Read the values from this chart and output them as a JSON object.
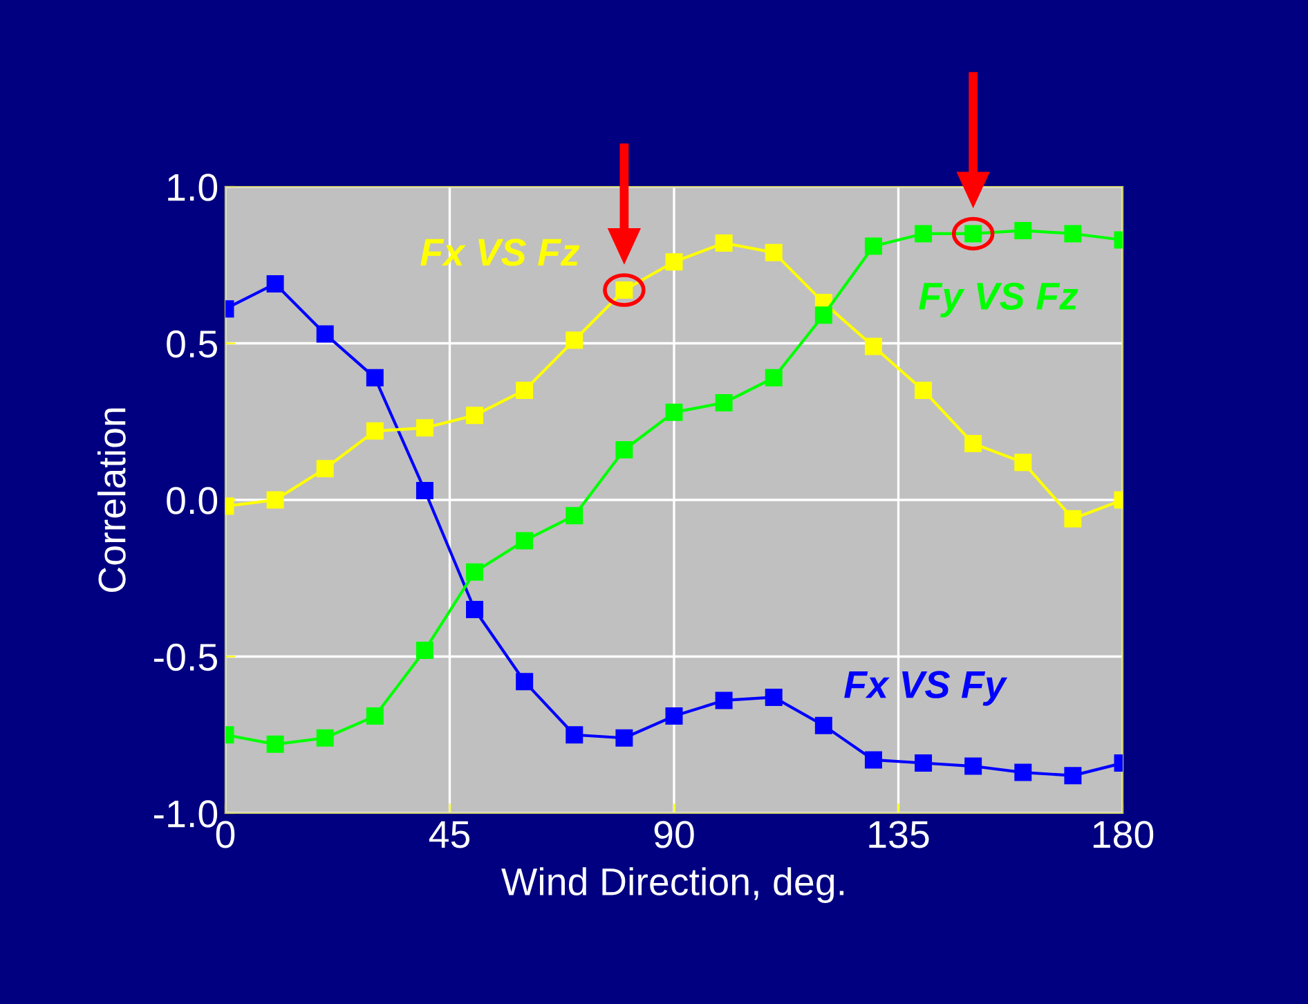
{
  "chart_data": {
    "type": "line",
    "xlabel": "Wind Direction, deg.",
    "ylabel": "Correlation",
    "x": [
      0,
      10,
      20,
      30,
      40,
      50,
      60,
      70,
      80,
      90,
      100,
      110,
      120,
      130,
      140,
      150,
      160,
      170,
      180
    ],
    "series": [
      {
        "name": "Fx VS Fy",
        "color": "#0000ff",
        "values": [
          0.61,
          0.69,
          0.53,
          0.39,
          0.03,
          -0.35,
          -0.58,
          -0.75,
          -0.76,
          -0.69,
          -0.64,
          -0.63,
          -0.72,
          -0.83,
          -0.84,
          -0.85,
          -0.87,
          -0.88,
          -0.84
        ]
      },
      {
        "name": "Fx VS Fz",
        "color": "#ffff00",
        "values": [
          -0.02,
          0.0,
          0.1,
          0.22,
          0.23,
          0.27,
          0.35,
          0.51,
          0.67,
          0.76,
          0.82,
          0.79,
          0.63,
          0.49,
          0.35,
          0.18,
          0.12,
          -0.06,
          0.0
        ]
      },
      {
        "name": "Fy VS Fz",
        "color": "#00ff00",
        "values": [
          -0.75,
          -0.78,
          -0.76,
          -0.69,
          -0.48,
          -0.23,
          -0.13,
          -0.05,
          0.16,
          0.28,
          0.31,
          0.39,
          0.59,
          0.81,
          0.85,
          0.85,
          0.86,
          0.85,
          0.83
        ]
      }
    ],
    "xlim": [
      0,
      180
    ],
    "xticks": [
      0,
      45,
      90,
      135,
      180
    ],
    "ylim": [
      -1.0,
      1.0
    ],
    "yticks": [
      {
        "value": -1.0,
        "label": "-1.0"
      },
      {
        "value": -0.5,
        "label": "-0.5"
      },
      {
        "value": 0.0,
        "label": "0.0"
      },
      {
        "value": 0.5,
        "label": "0.5"
      },
      {
        "value": 1.0,
        "label": "1.0"
      }
    ],
    "grid": true,
    "marker": "square",
    "line_style": "solid",
    "legend": false
  }
}
